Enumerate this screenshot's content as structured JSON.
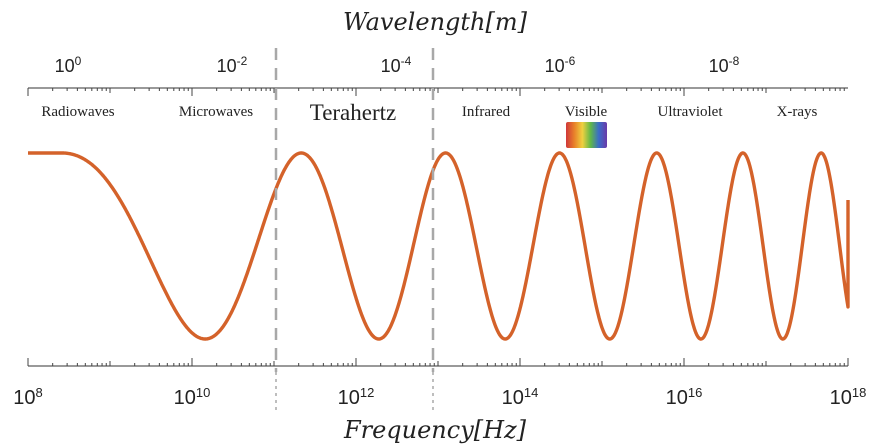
{
  "top_axis": {
    "label": "Wavelength[m]",
    "ticks": [
      {
        "base": "10",
        "exp": "0",
        "log_value": 0
      },
      {
        "base": "10",
        "exp": "-2",
        "log_value": -2
      },
      {
        "base": "10",
        "exp": "-4",
        "log_value": -4
      },
      {
        "base": "10",
        "exp": "-6",
        "log_value": -6
      },
      {
        "base": "10",
        "exp": "-8",
        "log_value": -8
      }
    ]
  },
  "bottom_axis": {
    "label": "Frequency[Hz]",
    "range_log": [
      8,
      18
    ],
    "ticks": [
      {
        "base": "10",
        "exp": "8",
        "log_value": 8
      },
      {
        "base": "10",
        "exp": "10",
        "log_value": 10
      },
      {
        "base": "10",
        "exp": "12",
        "log_value": 12
      },
      {
        "base": "10",
        "exp": "14",
        "log_value": 14
      },
      {
        "base": "10",
        "exp": "16",
        "log_value": 16
      },
      {
        "base": "10",
        "exp": "18",
        "log_value": 18
      }
    ]
  },
  "bands": [
    {
      "name": "Radiowaves"
    },
    {
      "name": "Microwaves"
    },
    {
      "name": "Terahertz"
    },
    {
      "name": "Infrared"
    },
    {
      "name": "Visible"
    },
    {
      "name": "Ultraviolet"
    },
    {
      "name": "X-rays"
    }
  ],
  "terahertz_bounds_hz_log": [
    11,
    13
  ],
  "colors": {
    "wave": "#d4622a",
    "divider": "#a8a8a8",
    "axis": "#333333",
    "spectrum": [
      "#d0383a",
      "#e8802a",
      "#f0d040",
      "#60b848",
      "#3a6cc8",
      "#6a3aa8"
    ]
  }
}
